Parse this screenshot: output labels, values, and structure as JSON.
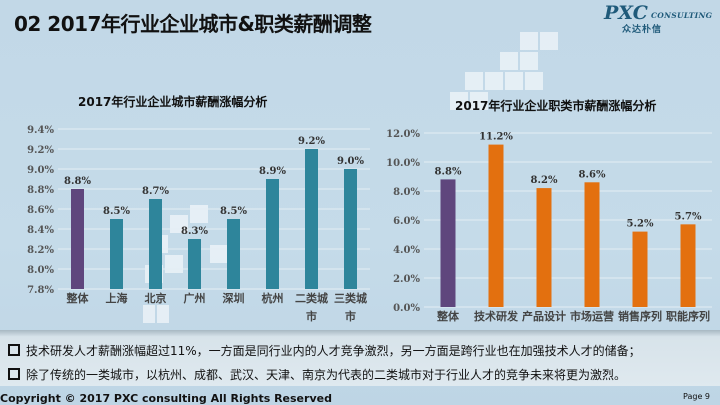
{
  "header": {
    "title": "02 2017年行业企业城市&职类薪酬调整"
  },
  "logo": {
    "brand": "PXC",
    "sub": "CONSULTING",
    "cn": "众达朴信"
  },
  "colors": {
    "overall": "#5f467d",
    "city": "#2e859b",
    "job": "#e3700f",
    "grid": "#e4eef4"
  },
  "chart_data": [
    {
      "type": "bar",
      "title": "2017年行业企业城市薪酬涨幅分析",
      "categories": [
        "整体",
        "上海",
        "北京",
        "广州",
        "深圳",
        "杭州",
        "二类城市",
        "三类城市"
      ],
      "category_lines": [
        [
          "整体"
        ],
        [
          "上海"
        ],
        [
          "北京"
        ],
        [
          "广州"
        ],
        [
          "深圳"
        ],
        [
          "杭州"
        ],
        [
          "二类城",
          "市"
        ],
        [
          "三类城",
          "市"
        ]
      ],
      "values": [
        8.8,
        8.5,
        8.7,
        8.3,
        8.5,
        8.9,
        9.2,
        9.0
      ],
      "data_labels": [
        "8.8%",
        "8.5%",
        "8.7%",
        "8.3%",
        "8.5%",
        "8.9%",
        "9.2%",
        "9.0%"
      ],
      "ylim": [
        7.8,
        9.4
      ],
      "yticks": [
        "7.8%",
        "8.0%",
        "8.2%",
        "8.4%",
        "8.6%",
        "8.8%",
        "9.0%",
        "9.2%",
        "9.4%"
      ],
      "xlabel": "",
      "ylabel": "",
      "grid": true,
      "legend": "none"
    },
    {
      "type": "bar",
      "title": "2017年行业企业职类市薪酬涨幅分析",
      "categories": [
        "整体",
        "技术研发",
        "产品设计",
        "市场运营",
        "销售序列",
        "职能序列"
      ],
      "category_lines": [
        [
          "整体"
        ],
        [
          "技术研发"
        ],
        [
          "产品设计"
        ],
        [
          "市场运营"
        ],
        [
          "销售序列"
        ],
        [
          "职能序列"
        ]
      ],
      "values": [
        8.8,
        11.2,
        8.2,
        8.6,
        5.2,
        5.7
      ],
      "data_labels": [
        "8.8%",
        "11.2%",
        "8.2%",
        "8.6%",
        "5.2%",
        "5.7%"
      ],
      "ylim": [
        0,
        12
      ],
      "yticks": [
        "0.0%",
        "2.0%",
        "4.0%",
        "6.0%",
        "8.0%",
        "10.0%",
        "12.0%"
      ],
      "xlabel": "",
      "ylabel": "",
      "grid": true,
      "legend": "none"
    }
  ],
  "bullets": [
    "技术研发人才薪酬涨幅超过11%，一方面是同行业内的人才竞争激烈，另一方面是跨行业也在加强技术人才的储备；",
    "除了传统的一类城市，以杭州、成都、武汉、天津、南京为代表的二类城市对于行业人才的竞争未来将更为激烈。"
  ],
  "footer": {
    "copyright": "Copyright © 2017 PXC consulting All Rights Reserved",
    "page": "Page 9"
  }
}
